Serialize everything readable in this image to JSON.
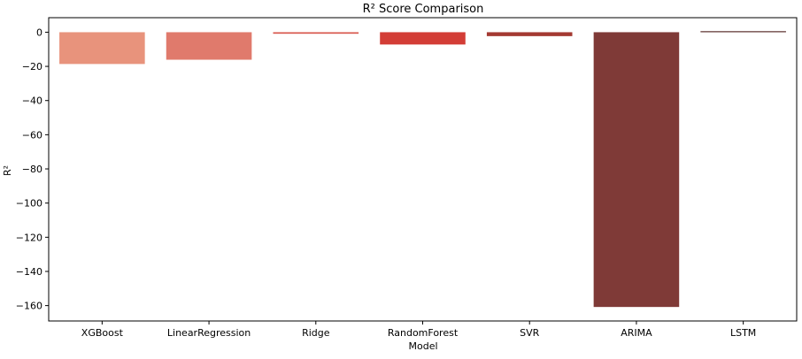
{
  "chart_data": {
    "type": "bar",
    "title": "R² Score Comparison",
    "xlabel": "Model",
    "ylabel": "R²",
    "categories": [
      "XGBoost",
      "LinearRegression",
      "Ridge",
      "RandomForest",
      "SVR",
      "ARIMA",
      "LSTM"
    ],
    "values": [
      -18.6,
      -16.1,
      -0.9,
      -7.2,
      -2.3,
      -160.8,
      0.6
    ],
    "colors": [
      "#e8937c",
      "#e07a6c",
      "#d95a50",
      "#d33d36",
      "#a43a32",
      "#7f3a37",
      "#5a2e2c"
    ],
    "ylim": [
      -169,
      8.5
    ],
    "yticks": [
      0,
      -20,
      -40,
      -60,
      -80,
      -100,
      -120,
      -140,
      -160
    ],
    "ytick_labels": [
      "0",
      "−20",
      "−40",
      "−60",
      "−80",
      "−100",
      "−120",
      "−140",
      "−160"
    ],
    "grid": false,
    "legend": "none"
  }
}
